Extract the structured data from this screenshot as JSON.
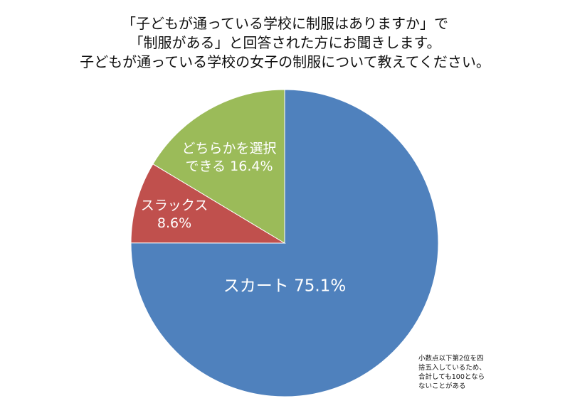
{
  "title_lines": [
    "「子どもが通っている学校に制服はありますか」で",
    "「制服がある」と回答された方にお聞きします。",
    "子どもが通っている学校の女子の制服について教えてください。"
  ],
  "note_lines": [
    "小数点以下第2位を四",
    "捨五入しているため、",
    "合計しても100となら",
    "ないことがある"
  ],
  "chart_data": {
    "type": "pie",
    "title": "「子どもが通っている学校に制服はありますか」で「制服がある」と回答された方にお聞きします。子どもが通っている学校の女子の制服について教えてください。",
    "start": "12 o'clock, clockwise",
    "slices": [
      {
        "label": "スカート",
        "value": 75.1,
        "value_text": "75.1%",
        "color": "#4F81BD"
      },
      {
        "label": "スラックス",
        "value": 8.6,
        "value_text": "8.6%",
        "color": "#C0504D"
      },
      {
        "label": "どちらかを選択できる",
        "value": 16.4,
        "value_text": "16.4%",
        "color": "#9BBB59"
      }
    ],
    "slice_label_lines": [
      [
        "スカート 75.1%"
      ],
      [
        "スラックス",
        "8.6%"
      ],
      [
        "どちらかを選択",
        "できる 16.4%"
      ]
    ]
  }
}
